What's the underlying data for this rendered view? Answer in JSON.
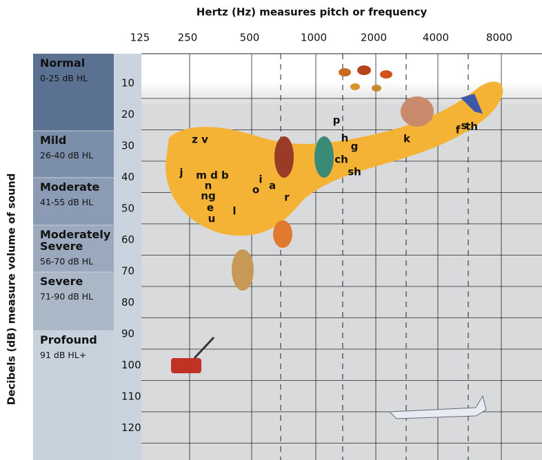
{
  "header": {
    "x_axis_title": "Hertz (Hz) measures pitch or frequency",
    "y_axis_title": "Decibels (dB) measure volume of sound"
  },
  "frequencies": [
    "125",
    "250",
    "500",
    "1000",
    "2000",
    "4000",
    "8000"
  ],
  "decibels": [
    "10",
    "20",
    "30",
    "40",
    "50",
    "60",
    "70",
    "80",
    "90",
    "100",
    "110",
    "120"
  ],
  "hearing_levels": [
    {
      "name": "Normal",
      "range": "0-25 dB HL"
    },
    {
      "name": "Mild",
      "range": "26-40 dB HL"
    },
    {
      "name": "Moderate",
      "range": "41-55 dB HL"
    },
    {
      "name": "Moderately Severe",
      "range": "56-70 dB HL"
    },
    {
      "name": "Severe",
      "range": "71-90 dB HL"
    },
    {
      "name": "Profound",
      "range": "91 dB HL+"
    }
  ],
  "speech_sounds": [
    "z v",
    "j",
    "m d b",
    "n",
    "ng",
    "e",
    "u",
    "l",
    "o",
    "i",
    "a",
    "r",
    "p",
    "h",
    "g",
    "ch",
    "sh",
    "k",
    "f",
    "s",
    "th"
  ]
}
